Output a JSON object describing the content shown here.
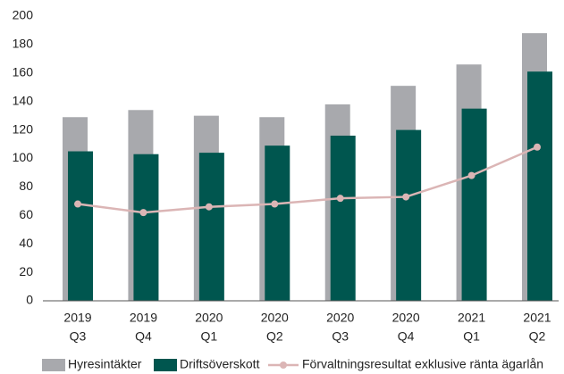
{
  "chart_data": {
    "type": "bar-line",
    "categories": [
      [
        "2019",
        "Q3"
      ],
      [
        "2019",
        "Q4"
      ],
      [
        "2020",
        "Q1"
      ],
      [
        "2020",
        "Q2"
      ],
      [
        "2020",
        "Q3"
      ],
      [
        "2020",
        "Q4"
      ],
      [
        "2021",
        "Q1"
      ],
      [
        "2021",
        "Q2"
      ]
    ],
    "series": [
      {
        "name": "Hyresintäkter",
        "type": "bar",
        "color": "#a8a9ad",
        "values": [
          129,
          134,
          130,
          129,
          138,
          151,
          166,
          188
        ]
      },
      {
        "name": "Driftsöverskott",
        "type": "bar",
        "color": "#00564f",
        "values": [
          105,
          103,
          104,
          109,
          116,
          120,
          135,
          161
        ]
      },
      {
        "name": "Förvaltningsresultat exklusive ränta ägarlån",
        "type": "line",
        "color": "#dbb5b5",
        "values": [
          68,
          62,
          66,
          68,
          72,
          73,
          88,
          108
        ]
      }
    ],
    "ylim": [
      0,
      200
    ],
    "yticks": [
      0,
      20,
      40,
      60,
      80,
      100,
      120,
      140,
      160,
      180,
      200
    ],
    "grid": false
  }
}
